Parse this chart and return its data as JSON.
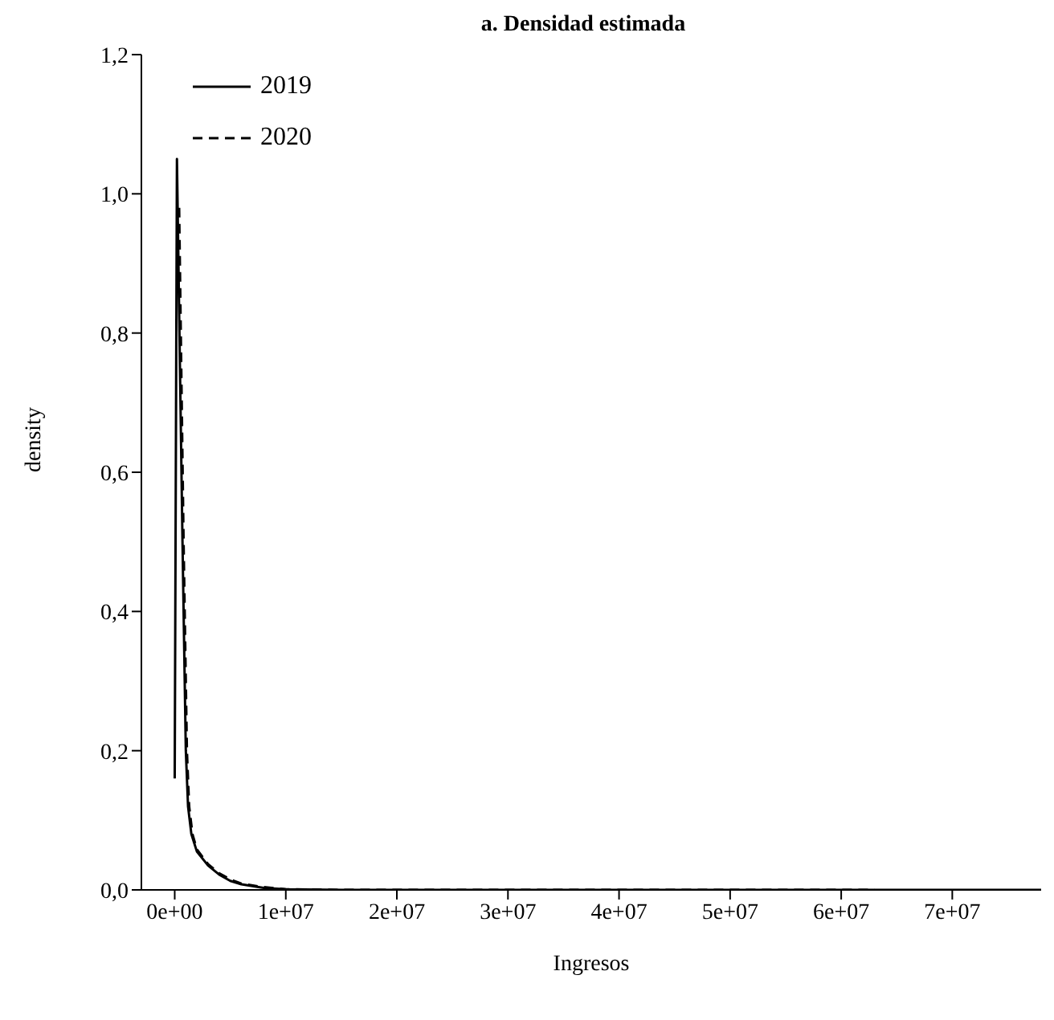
{
  "chart_data": {
    "type": "line",
    "title": "a. Densidad estimada",
    "xlabel": "Ingresos",
    "ylabel": "density",
    "xlim": [
      -3000000,
      78000000
    ],
    "xticks": [
      {
        "value": 0,
        "label": "0e+00"
      },
      {
        "value": 10000000,
        "label": "1e+07"
      },
      {
        "value": 20000000,
        "label": "2e+07"
      },
      {
        "value": 30000000,
        "label": "3e+07"
      },
      {
        "value": 40000000,
        "label": "4e+07"
      },
      {
        "value": 50000000,
        "label": "5e+07"
      },
      {
        "value": 60000000,
        "label": "6e+07"
      },
      {
        "value": 70000000,
        "label": "7e+07"
      }
    ],
    "ylim": [
      0,
      1.2
    ],
    "yticks": [
      {
        "value": 0,
        "label": "0,0"
      },
      {
        "value": 0.2,
        "label": "0,2"
      },
      {
        "value": 0.4,
        "label": "0,4"
      },
      {
        "value": 0.6,
        "label": "0,6"
      },
      {
        "value": 0.8,
        "label": "0,8"
      },
      {
        "value": 1.0,
        "label": "1,0"
      },
      {
        "value": 1.2,
        "label": "1,2"
      }
    ],
    "grid": false,
    "legend": "top left",
    "marker": "none",
    "series": [
      {
        "name": "2019",
        "color": "#000000",
        "line_style": "solid",
        "x": [
          0,
          200000,
          700000,
          1000000,
          1200000,
          1500000,
          2000000,
          3000000,
          4000000,
          5000000,
          6000000,
          8000000,
          10000000,
          15000000,
          30000000,
          50000000,
          78000000
        ],
        "values": [
          0.16,
          1.05,
          0.5,
          0.2,
          0.12,
          0.08,
          0.055,
          0.035,
          0.022,
          0.013,
          0.008,
          0.003,
          0.001,
          0,
          0,
          0,
          0
        ]
      },
      {
        "name": "2020",
        "color": "#000000",
        "line_style": "dashed",
        "x": [
          400000,
          800000,
          1100000,
          1300000,
          1600000,
          2000000,
          3000000,
          4000000,
          5000000,
          6000000,
          8000000,
          10000000,
          15000000,
          30000000,
          50000000,
          63000000
        ],
        "values": [
          0.98,
          0.5,
          0.2,
          0.12,
          0.08,
          0.058,
          0.037,
          0.024,
          0.015,
          0.009,
          0.004,
          0.001,
          0,
          0,
          0,
          0
        ]
      }
    ]
  }
}
